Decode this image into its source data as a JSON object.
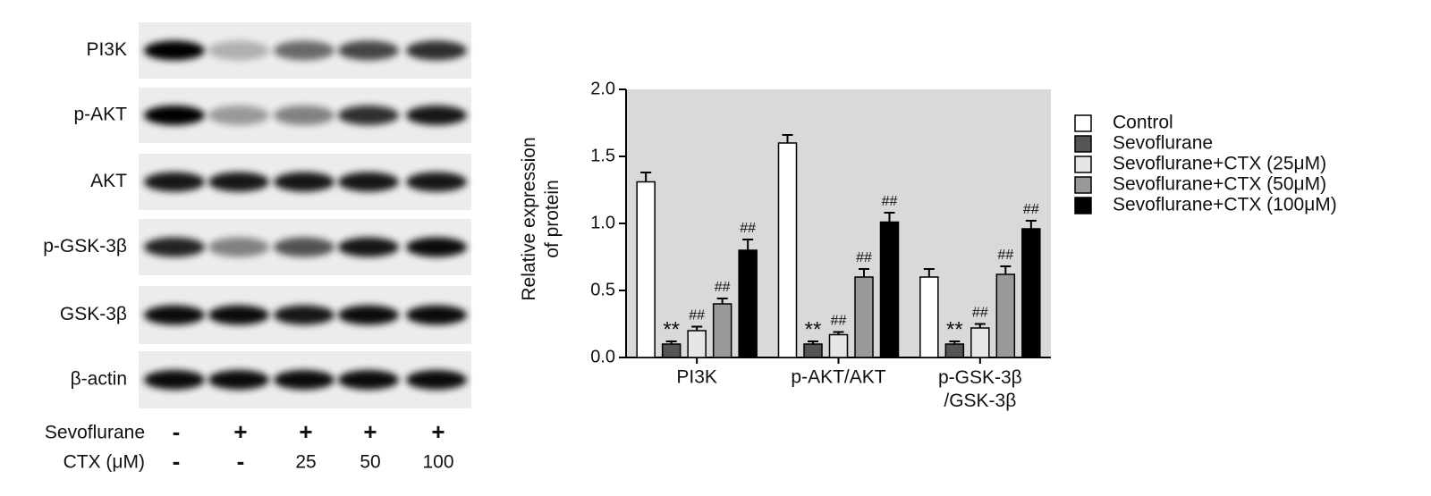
{
  "blot": {
    "bands": [
      "PI3K",
      "p-AKT",
      "AKT",
      "p-GSK-3β",
      "GSK-3β",
      "β-actin"
    ],
    "conditions": [
      {
        "label": "Sevoflurane",
        "values": [
          "-",
          "+",
          "+",
          "+",
          "+"
        ]
      },
      {
        "label": "CTX (μM)",
        "values": [
          "-",
          "-",
          "25",
          "50",
          "100"
        ]
      }
    ]
  },
  "chart_data": {
    "type": "bar",
    "ylabel": "Relative expression\nof protein",
    "categories": [
      "PI3K",
      "p-AKT/AKT",
      "p-GSK-3β\n/GSK-3β"
    ],
    "ylim": [
      0,
      2
    ],
    "yticks": [
      {
        "value": 0,
        "label": "0.0"
      },
      {
        "value": 0.5,
        "label": "0.5"
      },
      {
        "value": 1,
        "label": "1.0"
      },
      {
        "value": 1.5,
        "label": "1.5"
      },
      {
        "value": 2,
        "label": "2.0"
      }
    ],
    "background": "#d9d9d9",
    "series": [
      {
        "name": "Control",
        "color": "#ffffff",
        "values": [
          1.31,
          1.6,
          0.6
        ],
        "errors": [
          0.07,
          0.06,
          0.06
        ],
        "annotations": [
          null,
          null,
          null
        ]
      },
      {
        "name": "Sevoflurane",
        "color": "#555555",
        "values": [
          0.1,
          0.1,
          0.1
        ],
        "errors": [
          0.02,
          0.02,
          0.02
        ],
        "annotations": [
          "**",
          "**",
          "**"
        ]
      },
      {
        "name": "Sevoflurane+CTX (25μM)",
        "color": "#e6e6e6",
        "values": [
          0.2,
          0.17,
          0.22
        ],
        "errors": [
          0.03,
          0.02,
          0.03
        ],
        "annotations": [
          "##",
          "##",
          "##"
        ]
      },
      {
        "name": "Sevoflurane+CTX (50μM)",
        "color": "#999999",
        "values": [
          0.4,
          0.6,
          0.62
        ],
        "errors": [
          0.04,
          0.06,
          0.06
        ],
        "annotations": [
          "##",
          "##",
          "##"
        ]
      },
      {
        "name": "Sevoflurane+CTX (100μM)",
        "color": "#000000",
        "values": [
          0.8,
          1.01,
          0.96
        ],
        "errors": [
          0.08,
          0.07,
          0.06
        ],
        "annotations": [
          "##",
          "##",
          "##"
        ]
      }
    ]
  }
}
